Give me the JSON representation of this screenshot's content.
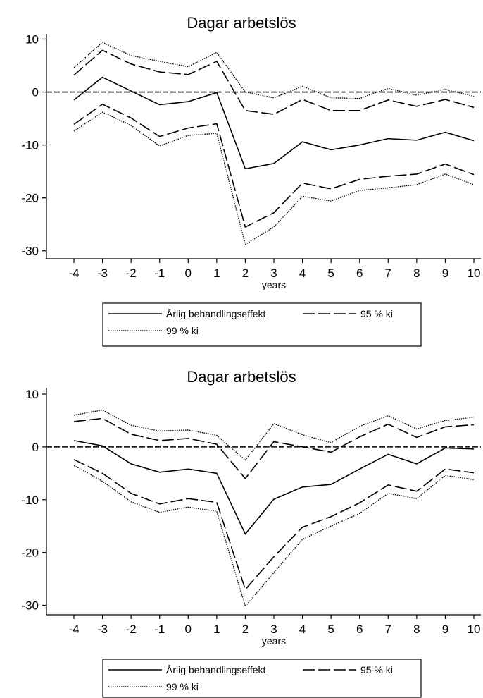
{
  "chart_data": [
    {
      "type": "line",
      "title": "Dagar arbetslös",
      "xlabel": "years",
      "ylabel": "",
      "x": [
        -4,
        -3,
        -2,
        -1,
        0,
        1,
        2,
        3,
        4,
        5,
        6,
        7,
        8,
        9,
        10
      ],
      "xticks": [
        "-4",
        "-3",
        "-2",
        "-1",
        "0",
        "1",
        "2",
        "3",
        "4",
        "5",
        "6",
        "7",
        "8",
        "9",
        "10"
      ],
      "ylim": [
        -31.5,
        11
      ],
      "yticks": [
        10,
        0,
        -10,
        -20,
        -30
      ],
      "reference_line": 0,
      "legend_position": "bottom",
      "series": [
        {
          "name": "Årlig behandlingseffekt",
          "style": "solid",
          "values": [
            -1.5,
            2.8,
            0.2,
            -2.4,
            -1.8,
            -0.1,
            -14.5,
            -13.5,
            -9.4,
            -10.9,
            -10.0,
            -8.8,
            -9.1,
            -7.6,
            -9.2
          ]
        },
        {
          "name": "95 % ki",
          "style": "dashed",
          "values": [
            3.2,
            7.9,
            5.3,
            3.8,
            3.3,
            5.8,
            -3.5,
            -4.2,
            -1.4,
            -3.5,
            -3.5,
            -1.5,
            -2.7,
            -1.4,
            -2.9
          ]
        },
        {
          "name": "95 % ki",
          "style": "dashed",
          "legend": false,
          "values": [
            -6.1,
            -2.3,
            -4.9,
            -8.4,
            -6.8,
            -6.0,
            -25.5,
            -22.8,
            -17.2,
            -18.3,
            -16.5,
            -15.9,
            -15.5,
            -13.6,
            -15.6
          ]
        },
        {
          "name": "99 % ki",
          "style": "dotted",
          "values": [
            4.6,
            9.4,
            6.9,
            5.8,
            4.8,
            7.5,
            0.0,
            -1.1,
            1.1,
            -1.1,
            -1.2,
            0.7,
            -0.6,
            0.5,
            -0.8
          ]
        },
        {
          "name": "99 % ki",
          "style": "dotted",
          "legend": false,
          "values": [
            -7.4,
            -3.8,
            -6.3,
            -10.2,
            -8.2,
            -7.8,
            -28.8,
            -25.5,
            -19.7,
            -20.6,
            -18.6,
            -18.1,
            -17.5,
            -15.5,
            -17.5
          ]
        }
      ]
    },
    {
      "type": "line",
      "title": "Dagar arbetslös",
      "xlabel": "years",
      "ylabel": "",
      "x": [
        -4,
        -3,
        -2,
        -1,
        0,
        1,
        2,
        3,
        4,
        5,
        6,
        7,
        8,
        9,
        10
      ],
      "xticks": [
        "-4",
        "-3",
        "-2",
        "-1",
        "0",
        "1",
        "2",
        "3",
        "4",
        "5",
        "6",
        "7",
        "8",
        "9",
        "10"
      ],
      "ylim": [
        -31.8,
        11.2
      ],
      "yticks": [
        10,
        0,
        -10,
        -20,
        -30
      ],
      "reference_line": 0,
      "legend_position": "bottom",
      "series": [
        {
          "name": "Årlig behandlingseffekt",
          "style": "solid",
          "values": [
            1.2,
            0.2,
            -3.2,
            -4.8,
            -4.2,
            -5.0,
            -16.5,
            -9.9,
            -7.6,
            -7.1,
            -4.2,
            -1.4,
            -3.2,
            -0.2,
            -0.4
          ]
        },
        {
          "name": "95 % ki",
          "style": "dashed",
          "values": [
            4.8,
            5.4,
            2.4,
            1.2,
            1.6,
            0.5,
            -6.0,
            1.0,
            0.0,
            -1.0,
            1.9,
            4.3,
            1.8,
            3.8,
            4.2
          ]
        },
        {
          "name": "95 % ki",
          "style": "dashed",
          "legend": false,
          "values": [
            -2.4,
            -5.0,
            -8.8,
            -10.8,
            -9.8,
            -10.5,
            -27.0,
            -20.8,
            -15.2,
            -13.2,
            -10.6,
            -7.2,
            -8.4,
            -4.2,
            -4.9
          ]
        },
        {
          "name": "99 % ki",
          "style": "dotted",
          "values": [
            6.0,
            7.0,
            4.1,
            3.0,
            3.2,
            2.2,
            -2.5,
            4.4,
            2.3,
            0.8,
            3.9,
            5.9,
            3.4,
            5.0,
            5.6
          ]
        },
        {
          "name": "99 % ki",
          "style": "dotted",
          "legend": false,
          "values": [
            -3.5,
            -6.5,
            -10.4,
            -12.4,
            -11.4,
            -12.2,
            -30.2,
            -23.8,
            -17.5,
            -15.0,
            -12.6,
            -8.8,
            -9.8,
            -5.4,
            -6.2
          ]
        }
      ]
    }
  ]
}
